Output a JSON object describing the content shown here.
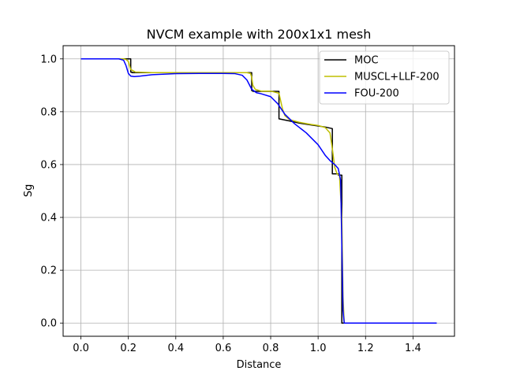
{
  "chart_data": {
    "type": "line",
    "title": "NVCM example with 200x1x1 mesh",
    "xlabel": "Distance",
    "ylabel": "Sg",
    "xlim": [
      -0.075,
      1.575
    ],
    "ylim": [
      -0.05,
      1.05
    ],
    "xticks": [
      0.0,
      0.2,
      0.4,
      0.6,
      0.8,
      1.0,
      1.2,
      1.4
    ],
    "xtick_labels": [
      "0.0",
      "0.2",
      "0.4",
      "0.6",
      "0.8",
      "1.0",
      "1.2",
      "1.4"
    ],
    "yticks": [
      0.0,
      0.2,
      0.4,
      0.6,
      0.8,
      1.0
    ],
    "ytick_labels": [
      "0.0",
      "0.2",
      "0.4",
      "0.6",
      "0.8",
      "1.0"
    ],
    "grid": true,
    "legend_position": "top-right",
    "series": [
      {
        "name": "MOC",
        "color": "#000000",
        "x": [
          0.0,
          0.21,
          0.21,
          0.215,
          0.215,
          0.72,
          0.72,
          0.725,
          0.725,
          0.835,
          0.835,
          0.88,
          0.92,
          0.97,
          1.03,
          1.06,
          1.06,
          1.085,
          1.085,
          1.1,
          1.1,
          1.5
        ],
        "y": [
          1.0,
          1.0,
          0.95,
          0.95,
          0.948,
          0.948,
          0.88,
          0.88,
          0.877,
          0.877,
          0.773,
          0.765,
          0.757,
          0.75,
          0.742,
          0.736,
          0.565,
          0.565,
          0.56,
          0.56,
          0.0,
          0.0
        ]
      },
      {
        "name": "MUSCL+LLF-200",
        "color": "#bfbf00",
        "x": [
          0.0,
          0.18,
          0.19,
          0.2,
          0.21,
          0.23,
          0.3,
          0.4,
          0.5,
          0.6,
          0.7,
          0.715,
          0.72,
          0.725,
          0.735,
          0.76,
          0.8,
          0.835,
          0.84,
          0.85,
          0.86,
          0.88,
          0.92,
          0.97,
          1.0,
          1.03,
          1.05,
          1.06,
          1.07,
          1.08,
          1.09,
          1.1,
          1.105,
          1.11,
          1.12,
          1.5
        ],
        "y": [
          1.0,
          1.0,
          0.998,
          0.99,
          0.96,
          0.95,
          0.948,
          0.948,
          0.948,
          0.948,
          0.948,
          0.945,
          0.93,
          0.9,
          0.885,
          0.878,
          0.878,
          0.87,
          0.85,
          0.81,
          0.785,
          0.77,
          0.76,
          0.752,
          0.748,
          0.74,
          0.72,
          0.66,
          0.59,
          0.565,
          0.56,
          0.4,
          0.1,
          0.0,
          0.0,
          0.0
        ]
      },
      {
        "name": "FOU-200",
        "color": "#0000ff",
        "x": [
          0.0,
          0.16,
          0.18,
          0.19,
          0.2,
          0.21,
          0.225,
          0.25,
          0.3,
          0.4,
          0.5,
          0.6,
          0.65,
          0.68,
          0.7,
          0.72,
          0.74,
          0.76,
          0.8,
          0.83,
          0.86,
          0.9,
          0.95,
          1.0,
          1.03,
          1.05,
          1.07,
          1.085,
          1.095,
          1.1,
          1.105,
          1.11,
          1.13,
          1.5
        ],
        "y": [
          1.0,
          1.0,
          0.995,
          0.975,
          0.945,
          0.935,
          0.933,
          0.935,
          0.94,
          0.944,
          0.945,
          0.945,
          0.944,
          0.938,
          0.92,
          0.885,
          0.872,
          0.868,
          0.857,
          0.83,
          0.79,
          0.755,
          0.72,
          0.675,
          0.635,
          0.615,
          0.6,
          0.585,
          0.54,
          0.3,
          0.05,
          0.0,
          0.0,
          0.0
        ]
      }
    ]
  }
}
